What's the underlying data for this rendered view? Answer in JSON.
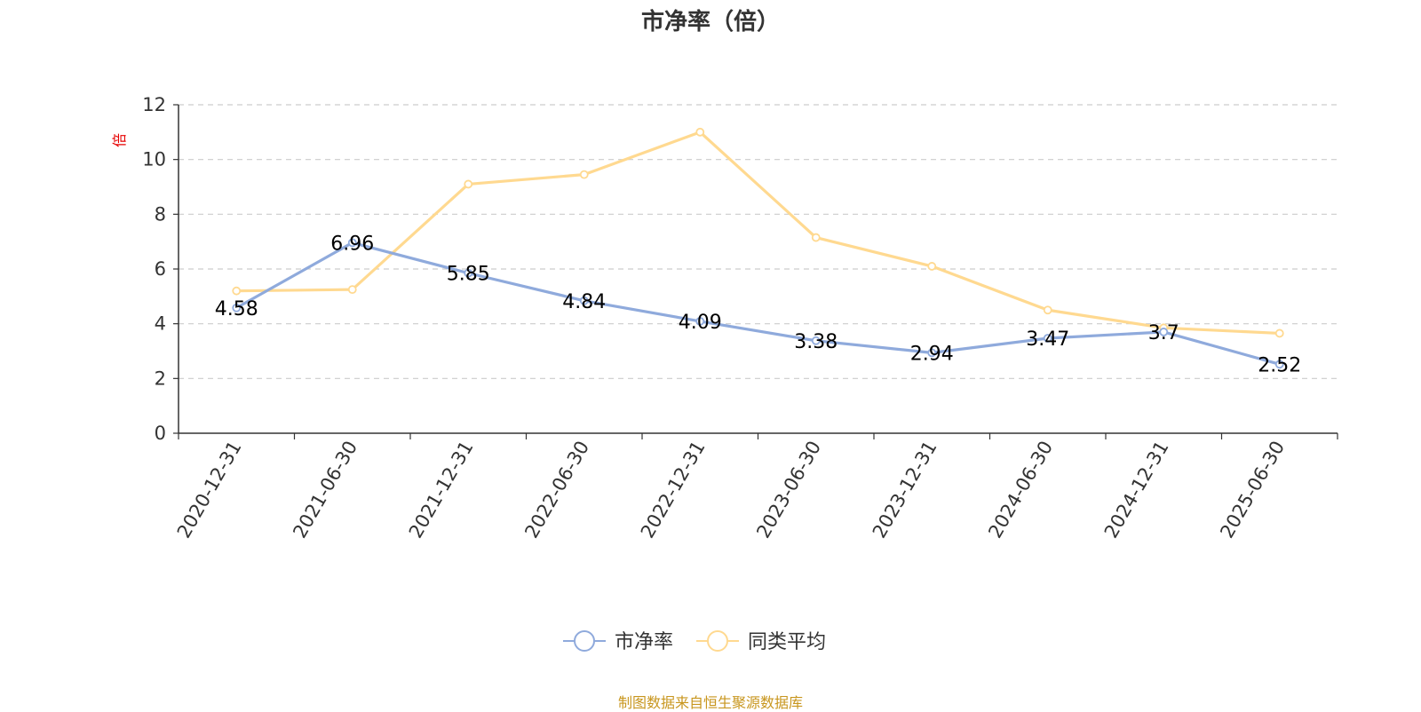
{
  "title": "市净率（倍）",
  "source": "制图数据来自恒生聚源数据库",
  "colors": {
    "series_0": "#8faadc",
    "series_1": "#ffd990",
    "grid": "#cccccc",
    "axis": "#333333",
    "unit": "#e60000",
    "source": "#c8961e"
  },
  "chart_data": {
    "type": "line",
    "title": "市净率（倍）",
    "ylabel": "倍",
    "xlabel": "",
    "categories": [
      "2020-12-31",
      "2021-06-30",
      "2021-12-31",
      "2022-06-30",
      "2022-12-31",
      "2023-06-30",
      "2023-12-31",
      "2024-06-30",
      "2024-12-31",
      "2025-06-30"
    ],
    "ylim": [
      0,
      12
    ],
    "yticks": [
      0,
      2,
      4,
      6,
      8,
      10,
      12
    ],
    "grid": true,
    "legend_position": "bottom-center",
    "series": [
      {
        "name": "市净率",
        "values": [
          4.58,
          6.96,
          5.85,
          4.84,
          4.09,
          3.38,
          2.94,
          3.47,
          3.7,
          2.52
        ],
        "labels": [
          "4.58",
          "6.96",
          "5.85",
          "4.84",
          "4.09",
          "3.38",
          "2.94",
          "3.47",
          "3.7",
          "2.52"
        ]
      },
      {
        "name": "同类平均",
        "values": [
          5.2,
          5.25,
          9.1,
          9.45,
          11.0,
          7.15,
          6.1,
          4.5,
          3.85,
          3.65
        ]
      }
    ]
  }
}
